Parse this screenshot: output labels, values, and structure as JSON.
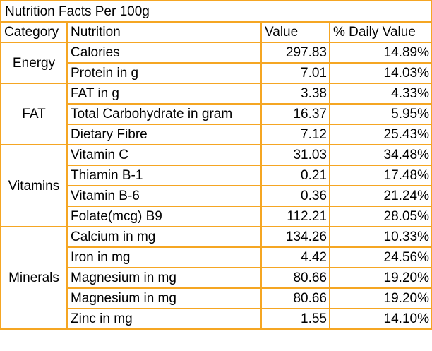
{
  "title": "Nutrition Facts Per 100g",
  "headers": {
    "category": "Category",
    "nutrition": "Nutrition",
    "value": "Value",
    "daily": "% Daily Value"
  },
  "groups": [
    {
      "category": "Energy",
      "rows": [
        {
          "nutrition": "Calories",
          "value": "297.83",
          "daily": "14.89%"
        },
        {
          "nutrition": "Protein in g",
          "value": "7.01",
          "daily": "14.03%"
        }
      ]
    },
    {
      "category": "FAT",
      "rows": [
        {
          "nutrition": "FAT in g",
          "value": "3.38",
          "daily": "4.33%"
        },
        {
          "nutrition": "Total Carbohydrate in gram",
          "value": "16.37",
          "daily": "5.95%"
        },
        {
          "nutrition": "Dietary Fibre",
          "value": "7.12",
          "daily": "25.43%"
        }
      ]
    },
    {
      "category": "Vitamins",
      "rows": [
        {
          "nutrition": "Vitamin C",
          "value": "31.03",
          "daily": "34.48%"
        },
        {
          "nutrition": "Thiamin B-1",
          "value": "0.21",
          "daily": "17.48%"
        },
        {
          "nutrition": "Vitamin B-6",
          "value": "0.36",
          "daily": "21.24%"
        },
        {
          "nutrition": "Folate(mcg) B9",
          "value": "112.21",
          "daily": "28.05%"
        }
      ]
    },
    {
      "category": "Minerals",
      "rows": [
        {
          "nutrition": "Calcium in mg",
          "value": "134.26",
          "daily": "10.33%"
        },
        {
          "nutrition": "Iron in mg",
          "value": "4.42",
          "daily": "24.56%"
        },
        {
          "nutrition": "Magnesium in mg",
          "value": "80.66",
          "daily": "19.20%"
        },
        {
          "nutrition": "Magnesium in mg",
          "value": "80.66",
          "daily": "19.20%"
        },
        {
          "nutrition": "Zinc in mg",
          "value": "1.55",
          "daily": "14.10%"
        }
      ]
    }
  ],
  "colors": {
    "border": "#f5a623",
    "text": "#000000",
    "background": "#ffffff"
  }
}
